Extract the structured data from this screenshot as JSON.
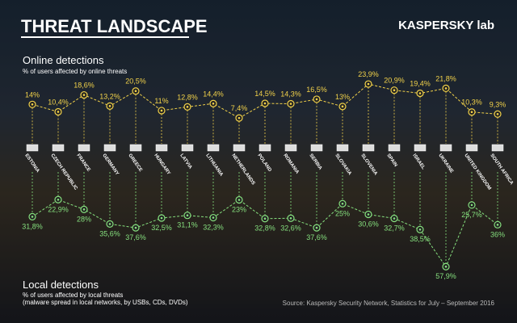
{
  "header": {
    "title": "THREAT LANDSCAPE",
    "logo": "KASPERSKY lab"
  },
  "source": "Source: Kaspersky Security Network, Statistics for July – September 2016",
  "chart_data": {
    "type": "line",
    "categories": [
      "ESTONIA",
      "CZECH REPUBLIC",
      "FRANCE",
      "GERMANY",
      "GREECE",
      "HUNGARY",
      "LATVIA",
      "LITHUANIA",
      "NETHERLANDS",
      "POLAND",
      "ROMANIA",
      "SERBIA",
      "SLOVAKIA",
      "SLOVENIA",
      "SPAIN",
      "ISRAEL",
      "UKRAINE",
      "UNITED KINGDOM",
      "SOUTH AFRICA"
    ],
    "series": [
      {
        "name": "Online detections",
        "description": [
          "% of users affected by online threats"
        ],
        "color": "#f2d24a",
        "values": [
          14,
          10.4,
          18.6,
          13.2,
          20.5,
          11,
          12.8,
          14.4,
          7.4,
          14.5,
          14.3,
          16.5,
          13,
          23.9,
          20.9,
          19.4,
          21.8,
          10.3,
          9.3
        ],
        "value_labels": [
          "14%",
          "10,4%",
          "18,6%",
          "13,2%",
          "20,5%",
          "11%",
          "12,8%",
          "14,4%",
          "7,4%",
          "14,5%",
          "14,3%",
          "16,5%",
          "13%",
          "23,9%",
          "20,9%",
          "19,4%",
          "21,8%",
          "10,3%",
          "9,3%"
        ]
      },
      {
        "name": "Local detections",
        "description": [
          "% of users affected by local threats",
          "(malware spread in local networks, by USBs, CDs, DVDs)"
        ],
        "color": "#86e07e",
        "values": [
          31.8,
          22.9,
          28,
          35.6,
          37.6,
          32.5,
          31.1,
          32.3,
          23,
          32.8,
          32.6,
          37.6,
          25,
          30.6,
          32.7,
          38.5,
          57.9,
          25.7,
          36
        ],
        "value_labels": [
          "31,8%",
          "22,9%",
          "28%",
          "35,6%",
          "37,6%",
          "32,5%",
          "31,1%",
          "32,3%",
          "23%",
          "32,8%",
          "32,6%",
          "37,6%",
          "25%",
          "30,6%",
          "32,7%",
          "38,5%",
          "57,9%",
          "25,7%",
          "36%"
        ]
      }
    ]
  }
}
